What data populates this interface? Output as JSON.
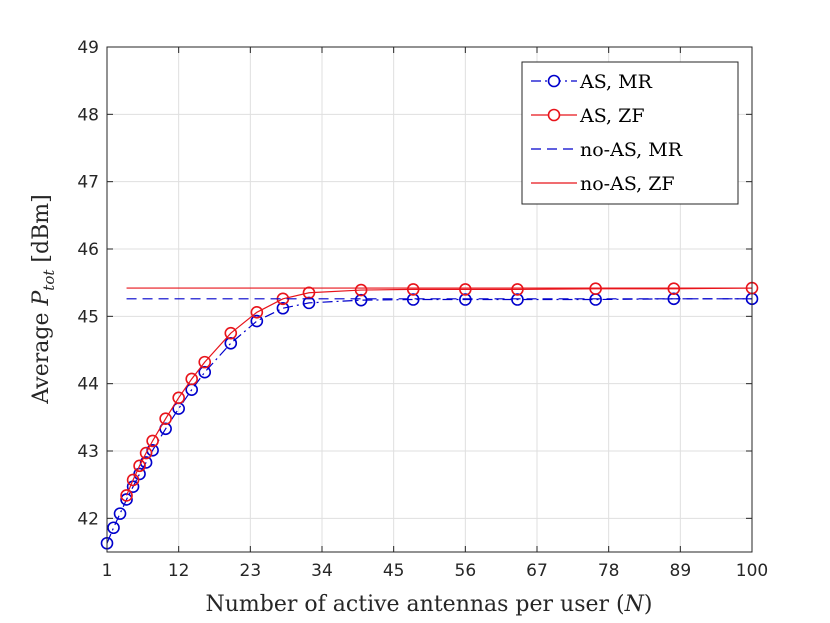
{
  "chart_data": {
    "type": "line",
    "title": "",
    "xlabel": "Number of active antennas per user (N)",
    "ylabel": "Average P_tot [dBm]",
    "ylabel_prefix": "Average ",
    "ylabel_symbol": "P",
    "ylabel_subscript": "tot",
    "ylabel_suffix": " [dBm]",
    "xlabel_text": "Number of active antennas per user (",
    "xlabel_symbol": "N",
    "xlabel_close": ")",
    "xlim": [
      1,
      100
    ],
    "ylim": [
      41.5,
      49
    ],
    "xticks": [
      1,
      12,
      23,
      34,
      45,
      56,
      67,
      78,
      89,
      100
    ],
    "yticks": [
      42,
      43,
      44,
      45,
      46,
      47,
      48,
      49
    ],
    "grid": true,
    "legend_position": "top-right",
    "series": [
      {
        "name": "AS, MR",
        "color": "#0000cc",
        "line": "dashdot",
        "marker": "circle",
        "x": [
          1,
          2,
          3,
          4,
          5,
          6,
          7,
          8,
          10,
          12,
          14,
          16,
          20,
          24,
          28,
          32,
          40,
          48,
          56,
          64,
          76,
          88,
          100
        ],
        "y": [
          41.63,
          41.86,
          42.07,
          42.28,
          42.47,
          42.66,
          42.83,
          43.01,
          43.33,
          43.63,
          43.91,
          44.17,
          44.6,
          44.93,
          45.12,
          45.2,
          45.24,
          45.25,
          45.25,
          45.25,
          45.25,
          45.26,
          45.26
        ]
      },
      {
        "name": "AS, ZF",
        "color": "#e8141b",
        "line": "solid",
        "marker": "circle",
        "x": [
          4,
          5,
          6,
          7,
          8,
          10,
          12,
          14,
          16,
          20,
          24,
          28,
          32,
          40,
          48,
          56,
          64,
          76,
          88,
          100
        ],
        "y": [
          42.34,
          42.57,
          42.78,
          42.97,
          43.15,
          43.48,
          43.79,
          44.07,
          44.32,
          44.75,
          45.06,
          45.26,
          45.35,
          45.39,
          45.4,
          45.4,
          45.4,
          45.41,
          45.41,
          45.42
        ]
      },
      {
        "name": "no-AS, MR",
        "color": "#0000cc",
        "line": "dashed",
        "marker": "none",
        "x": [
          4,
          100
        ],
        "y": [
          45.26,
          45.26
        ]
      },
      {
        "name": "no-AS, ZF",
        "color": "#e8141b",
        "line": "solid",
        "marker": "none",
        "x": [
          4,
          100
        ],
        "y": [
          45.42,
          45.42
        ]
      }
    ]
  }
}
